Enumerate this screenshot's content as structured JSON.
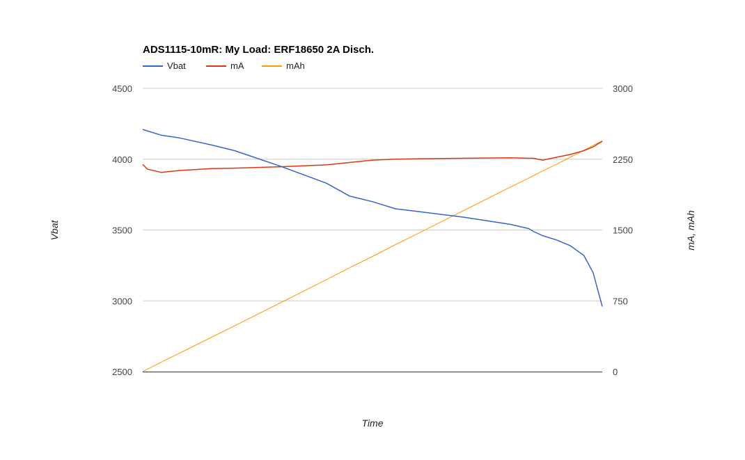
{
  "chart_data": {
    "type": "line",
    "title": "ADS1115-10mR: My Load: ERF18650 2A Disch.",
    "xlabel": "Time",
    "ylabel": "Vbat",
    "y2label": "mA, mAh",
    "ylim": [
      2500,
      4500
    ],
    "y2lim": [
      0,
      3000
    ],
    "yticks": [
      "4500",
      "4000",
      "3500",
      "3000",
      "2500"
    ],
    "y2ticks": [
      "3000",
      "2250",
      "1500",
      "750",
      "0"
    ],
    "x": [
      0,
      0.01,
      0.04,
      0.08,
      0.15,
      0.2,
      0.3,
      0.4,
      0.45,
      0.5,
      0.55,
      0.6,
      0.7,
      0.8,
      0.84,
      0.85,
      0.87,
      0.9,
      0.93,
      0.96,
      0.98,
      0.99,
      1.0
    ],
    "grid": true,
    "legend_position": "top-left",
    "series": [
      {
        "name": "Vbat",
        "axis": "left",
        "color": "#3366cc",
        "values": [
          4210,
          4200,
          4170,
          4150,
          4100,
          4060,
          3950,
          3830,
          3740,
          3700,
          3650,
          3630,
          3590,
          3540,
          3510,
          3490,
          3460,
          3430,
          3390,
          3320,
          3200,
          3080,
          2960
        ]
      },
      {
        "name": "mA",
        "axis": "right",
        "color": "#dc3912",
        "values": [
          2195,
          2145,
          2110,
          2130,
          2150,
          2155,
          2170,
          2190,
          2215,
          2240,
          2250,
          2255,
          2260,
          2265,
          2260,
          2260,
          2240,
          2270,
          2300,
          2340,
          2380,
          2410,
          2440
        ]
      },
      {
        "name": "mAh",
        "axis": "right",
        "color": "#ff9900",
        "values": [
          0,
          25,
          100,
          195,
          365,
          485,
          730,
          975,
          1100,
          1220,
          1345,
          1465,
          1710,
          1955,
          2050,
          2075,
          2125,
          2195,
          2270,
          2345,
          2395,
          2420,
          2445
        ]
      }
    ]
  }
}
